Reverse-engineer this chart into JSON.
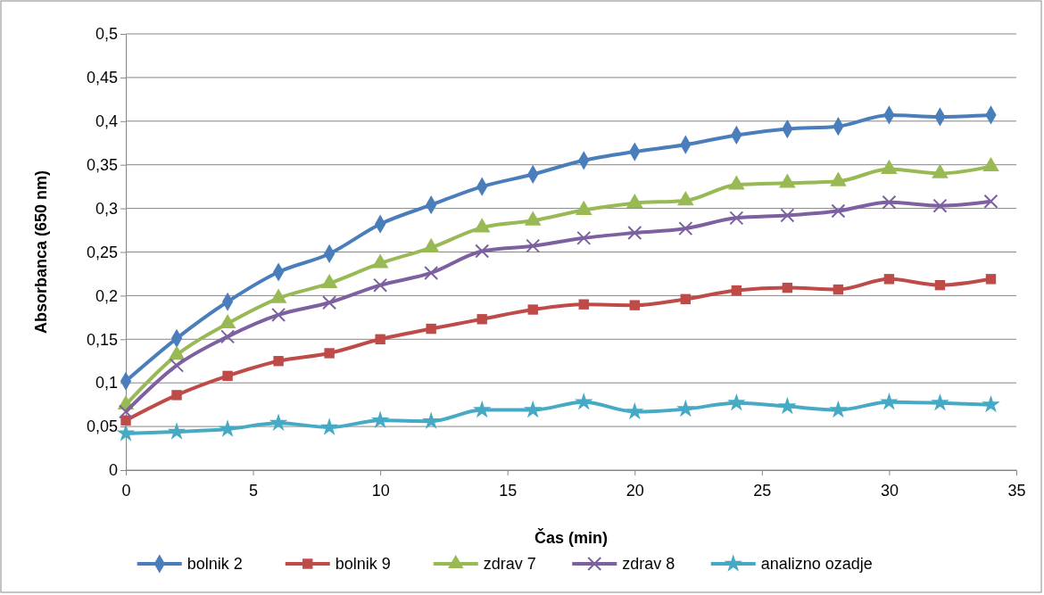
{
  "chart_data": {
    "type": "line",
    "xlabel": "Čas (min)",
    "ylabel": "Absorbanca (650 nm)",
    "x": [
      0,
      2,
      4,
      6,
      8,
      10,
      12,
      14,
      16,
      18,
      20,
      22,
      24,
      26,
      28,
      30,
      32,
      34
    ],
    "xlim": [
      0,
      35
    ],
    "xticks": [
      0,
      5,
      10,
      15,
      20,
      25,
      30,
      35
    ],
    "ylim": [
      0,
      0.5
    ],
    "yticks": [
      0,
      {
        "value": 0.05,
        "label": "0,05"
      },
      {
        "value": 0.1,
        "label": "0,1"
      },
      {
        "value": 0.15,
        "label": "0,15"
      },
      {
        "value": 0.2,
        "label": "0,2"
      },
      {
        "value": 0.25,
        "label": "0,25"
      },
      {
        "value": 0.3,
        "label": "0,3"
      },
      {
        "value": 0.35,
        "label": "0,35"
      },
      {
        "value": 0.4,
        "label": "0,4"
      },
      {
        "value": 0.45,
        "label": "0,45"
      },
      {
        "value": 0.5,
        "label": "0,5"
      }
    ],
    "grid": "y",
    "legend": "bottom",
    "line_style": "solid",
    "series": [
      {
        "name": "bolnik 2",
        "color": "#4a7ebb",
        "marker": "diamond",
        "values": [
          0.102,
          0.151,
          0.193,
          0.227,
          0.248,
          0.282,
          0.304,
          0.325,
          0.339,
          0.355,
          0.365,
          0.373,
          0.384,
          0.391,
          0.394,
          0.407,
          0.405,
          0.407
        ]
      },
      {
        "name": "bolnik 9",
        "color": "#be4b48",
        "marker": "square",
        "values": [
          0.057,
          0.086,
          0.108,
          0.125,
          0.134,
          0.15,
          0.162,
          0.173,
          0.184,
          0.19,
          0.189,
          0.196,
          0.206,
          0.209,
          0.207,
          0.219,
          0.212,
          0.219
        ]
      },
      {
        "name": "zdrav 7",
        "color": "#98b954",
        "marker": "triangle",
        "values": [
          0.075,
          0.132,
          0.168,
          0.197,
          0.214,
          0.237,
          0.255,
          0.278,
          0.286,
          0.298,
          0.306,
          0.309,
          0.327,
          0.329,
          0.331,
          0.345,
          0.34,
          0.348
        ]
      },
      {
        "name": "zdrav 8",
        "color": "#7d60a0",
        "marker": "cross",
        "values": [
          0.067,
          0.12,
          0.153,
          0.178,
          0.192,
          0.212,
          0.226,
          0.251,
          0.257,
          0.266,
          0.272,
          0.277,
          0.289,
          0.292,
          0.297,
          0.307,
          0.303,
          0.308
        ]
      },
      {
        "name": "analizno ozadje",
        "color": "#46aac5",
        "marker": "star",
        "values": [
          0.042,
          0.044,
          0.047,
          0.054,
          0.049,
          0.057,
          0.056,
          0.069,
          0.069,
          0.078,
          0.067,
          0.07,
          0.077,
          0.073,
          0.069,
          0.078,
          0.077,
          0.075
        ]
      }
    ]
  }
}
